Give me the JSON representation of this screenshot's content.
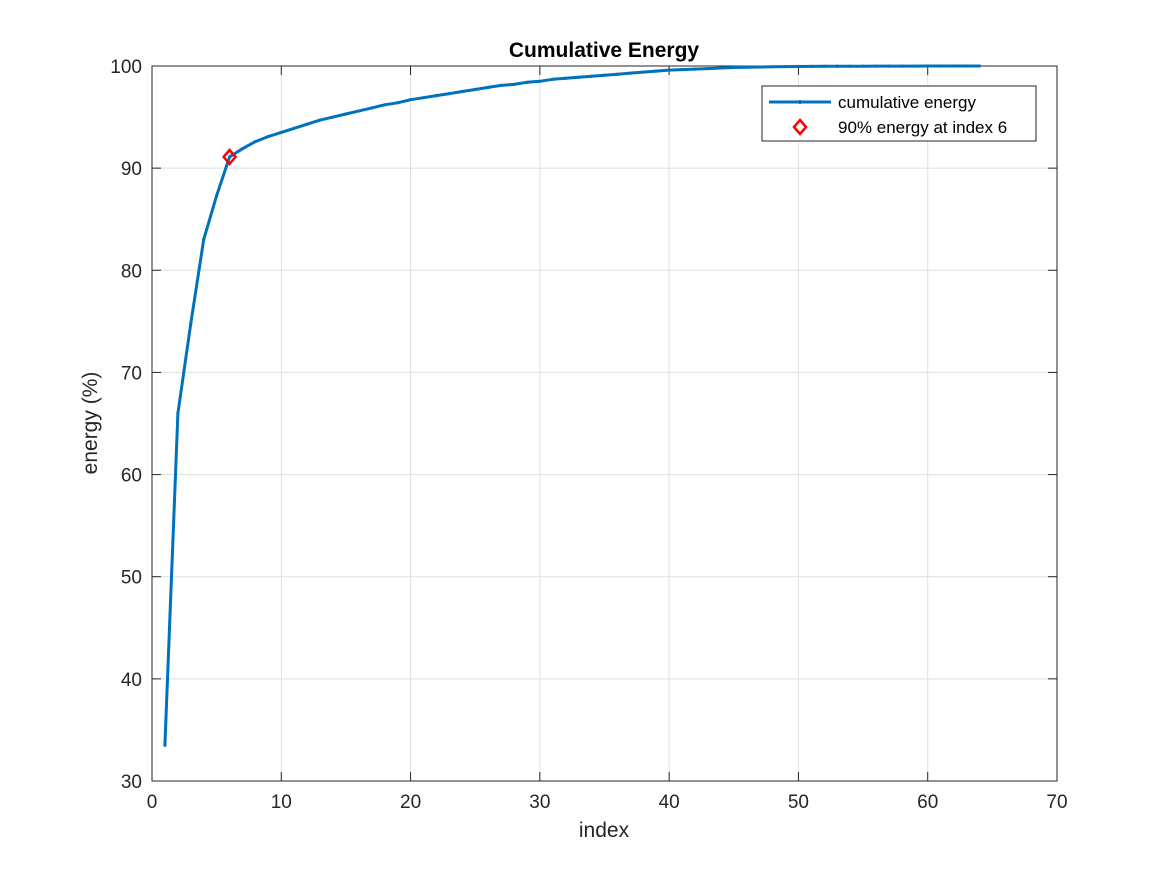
{
  "chart_data": {
    "type": "line",
    "title": "Cumulative Energy",
    "xlabel": "index",
    "ylabel": "energy (%)",
    "xlim": [
      0,
      70
    ],
    "ylim": [
      30,
      100
    ],
    "xticks": [
      0,
      10,
      20,
      30,
      40,
      50,
      60,
      70
    ],
    "yticks": [
      30,
      40,
      50,
      60,
      70,
      80,
      90,
      100
    ],
    "grid": true,
    "legend_position": "top-right",
    "series": [
      {
        "name": "cumulative energy",
        "color": "#0072BD",
        "x": [
          1,
          2,
          3,
          4,
          5,
          6,
          7,
          8,
          9,
          10,
          11,
          12,
          13,
          14,
          15,
          16,
          17,
          18,
          19,
          20,
          21,
          22,
          23,
          24,
          25,
          26,
          27,
          28,
          29,
          30,
          31,
          32,
          33,
          34,
          35,
          36,
          37,
          38,
          39,
          40,
          41,
          42,
          43,
          44,
          45,
          46,
          47,
          48,
          49,
          50,
          51,
          52,
          53,
          54,
          55,
          56,
          57,
          58,
          59,
          60,
          61,
          62,
          63,
          64
        ],
        "y": [
          33.5,
          66.0,
          74.8,
          83.0,
          87.3,
          91.1,
          91.9,
          92.6,
          93.1,
          93.5,
          93.9,
          94.3,
          94.7,
          95.0,
          95.3,
          95.6,
          95.9,
          96.2,
          96.4,
          96.7,
          96.9,
          97.1,
          97.3,
          97.5,
          97.7,
          97.9,
          98.1,
          98.2,
          98.4,
          98.5,
          98.7,
          98.8,
          98.9,
          99.0,
          99.1,
          99.2,
          99.3,
          99.4,
          99.5,
          99.6,
          99.65,
          99.7,
          99.75,
          99.8,
          99.85,
          99.88,
          99.9,
          99.92,
          99.94,
          99.95,
          99.96,
          99.97,
          99.975,
          99.98,
          99.985,
          99.99,
          99.99,
          99.995,
          99.995,
          100.0,
          100.0,
          100.0,
          100.0,
          100.0
        ]
      },
      {
        "name": "90% energy at index 6",
        "color": "#FF0000",
        "marker": "diamond",
        "x": [
          6
        ],
        "y": [
          91.1
        ]
      }
    ]
  }
}
